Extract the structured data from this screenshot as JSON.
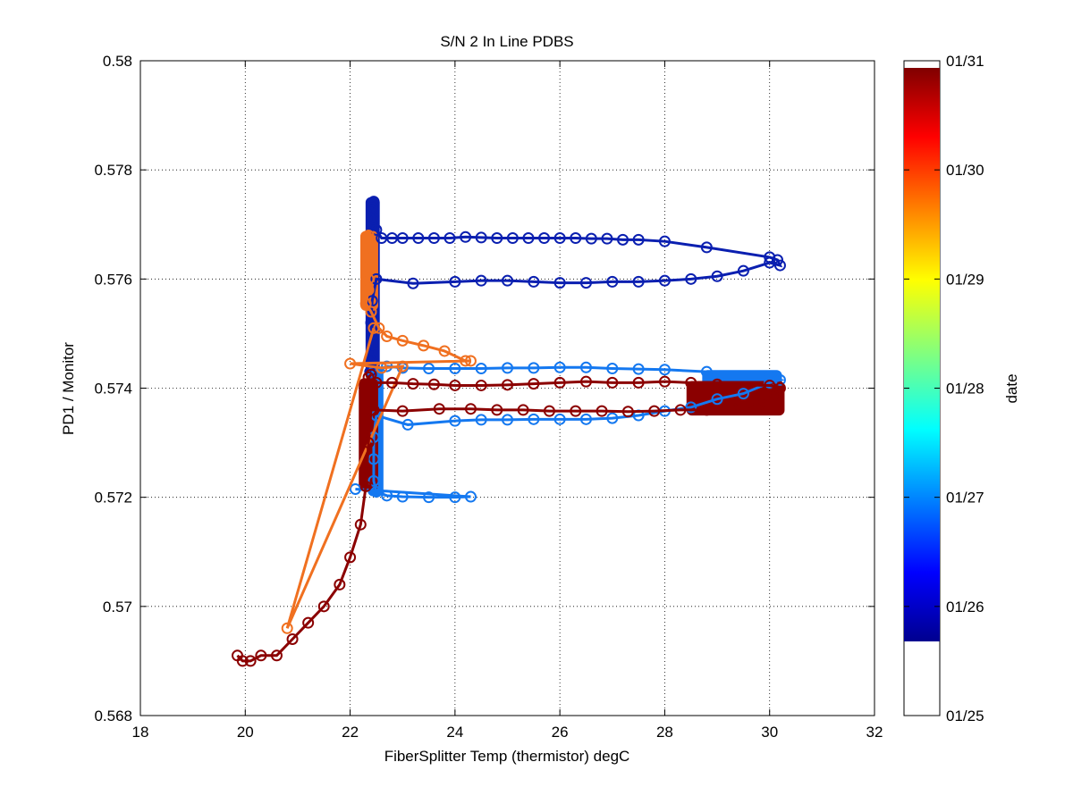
{
  "chart_data": {
    "type": "scatter",
    "title": "S/N 2 In Line PDBS",
    "xlabel": "FiberSplitter Temp (thermistor) degC",
    "ylabel": "PD1 / Monitor",
    "xlim": [
      18,
      32
    ],
    "ylim": [
      0.568,
      0.58
    ],
    "xticks": [
      18,
      20,
      22,
      24,
      26,
      28,
      30,
      32
    ],
    "xtick_labels": [
      "18",
      "20",
      "22",
      "24",
      "26",
      "28",
      "30",
      "32"
    ],
    "yticks": [
      0.568,
      0.57,
      0.572,
      0.574,
      0.576,
      0.578,
      0.58
    ],
    "ytick_labels": [
      "0.568",
      "0.57",
      "0.572",
      "0.574",
      "0.576",
      "0.578",
      "0.58"
    ],
    "grid": true,
    "colorbar": {
      "label": "date",
      "colormap": "jet",
      "range": [
        "01/25",
        "01/31"
      ],
      "ticks": [
        "01/25",
        "01/26",
        "01/27",
        "01/28",
        "01/29",
        "01/30",
        "01/31"
      ],
      "colored_span": [
        "01/25.7",
        "01/30.9"
      ]
    },
    "series": [
      {
        "date": "01/26",
        "color": "#0a1fb0",
        "points": [
          [
            22.45,
            0.57742
          ],
          [
            22.42,
            0.5773
          ],
          [
            22.45,
            0.5771
          ],
          [
            22.5,
            0.5769
          ],
          [
            22.6,
            0.57675
          ],
          [
            22.8,
            0.57675
          ],
          [
            23.0,
            0.57675
          ],
          [
            23.3,
            0.57675
          ],
          [
            23.6,
            0.57675
          ],
          [
            23.9,
            0.57675
          ],
          [
            24.2,
            0.57677
          ],
          [
            24.5,
            0.57676
          ],
          [
            24.8,
            0.57675
          ],
          [
            25.1,
            0.57675
          ],
          [
            25.4,
            0.57675
          ],
          [
            25.7,
            0.57675
          ],
          [
            26.0,
            0.57675
          ],
          [
            26.3,
            0.57675
          ],
          [
            26.6,
            0.57674
          ],
          [
            26.9,
            0.57674
          ],
          [
            27.2,
            0.57672
          ],
          [
            27.5,
            0.57672
          ],
          [
            28.0,
            0.57669
          ],
          [
            28.8,
            0.57658
          ],
          [
            30.0,
            0.5764
          ],
          [
            30.15,
            0.57635
          ],
          [
            30.2,
            0.57625
          ],
          [
            30.0,
            0.5763
          ],
          [
            29.5,
            0.57615
          ],
          [
            29.0,
            0.57605
          ],
          [
            28.5,
            0.576
          ],
          [
            28.0,
            0.57597
          ],
          [
            27.5,
            0.57595
          ],
          [
            27.0,
            0.57595
          ],
          [
            26.5,
            0.57593
          ],
          [
            26.0,
            0.57593
          ],
          [
            25.5,
            0.57595
          ],
          [
            25.0,
            0.57597
          ],
          [
            24.5,
            0.57597
          ],
          [
            24.0,
            0.57595
          ],
          [
            23.2,
            0.57592
          ],
          [
            22.5,
            0.576
          ],
          [
            22.42,
            0.5756
          ],
          [
            22.4,
            0.5752
          ],
          [
            22.42,
            0.5748
          ],
          [
            22.4,
            0.5745
          ],
          [
            22.38,
            0.5743
          ]
        ]
      },
      {
        "date": "01/27",
        "color": "#1478f0",
        "points": [
          [
            22.45,
            0.5743
          ],
          [
            22.7,
            0.5744
          ],
          [
            23.0,
            0.57437
          ],
          [
            23.5,
            0.57436
          ],
          [
            24.0,
            0.57436
          ],
          [
            24.5,
            0.57436
          ],
          [
            25.0,
            0.57437
          ],
          [
            25.5,
            0.57437
          ],
          [
            26.0,
            0.57438
          ],
          [
            26.5,
            0.57438
          ],
          [
            27.0,
            0.57436
          ],
          [
            27.5,
            0.57435
          ],
          [
            28.0,
            0.57434
          ],
          [
            28.8,
            0.5743
          ],
          [
            30.0,
            0.5742
          ],
          [
            30.2,
            0.57415
          ],
          [
            30.0,
            0.5741
          ],
          [
            29.5,
            0.5739
          ],
          [
            29.0,
            0.5738
          ],
          [
            28.5,
            0.57365
          ],
          [
            28.0,
            0.57358
          ],
          [
            27.5,
            0.5735
          ],
          [
            27.0,
            0.57345
          ],
          [
            26.5,
            0.57343
          ],
          [
            26.0,
            0.57343
          ],
          [
            25.5,
            0.57343
          ],
          [
            25.0,
            0.57342
          ],
          [
            24.5,
            0.57342
          ],
          [
            24.0,
            0.5734
          ],
          [
            23.1,
            0.57333
          ],
          [
            22.5,
            0.5735
          ],
          [
            22.45,
            0.5731
          ],
          [
            22.45,
            0.5727
          ],
          [
            22.45,
            0.5723
          ],
          [
            22.5,
            0.5721
          ],
          [
            22.7,
            0.57203
          ],
          [
            23.0,
            0.57201
          ],
          [
            23.5,
            0.572
          ],
          [
            24.0,
            0.572
          ],
          [
            24.3,
            0.57201
          ],
          [
            22.1,
            0.57215
          ]
        ]
      },
      {
        "date": "01/29.5",
        "color": "#f07020",
        "points": [
          [
            22.35,
            0.5768
          ],
          [
            22.4,
            0.5766
          ],
          [
            22.35,
            0.5764
          ],
          [
            22.38,
            0.5762
          ],
          [
            22.35,
            0.576
          ],
          [
            22.35,
            0.5758
          ],
          [
            22.3,
            0.57555
          ],
          [
            22.4,
            0.5754
          ],
          [
            22.55,
            0.5751
          ],
          [
            22.7,
            0.57495
          ],
          [
            23.0,
            0.57487
          ],
          [
            23.4,
            0.57478
          ],
          [
            23.8,
            0.57468
          ],
          [
            24.2,
            0.5745
          ],
          [
            24.3,
            0.5745
          ],
          [
            22.0,
            0.57445
          ],
          [
            22.6,
            0.57437
          ],
          [
            23.0,
            0.5744
          ],
          [
            20.8,
            0.5696
          ],
          [
            22.45,
            0.5751
          ]
        ]
      },
      {
        "date": "01/30.8",
        "color": "#8b0000",
        "points": [
          [
            19.85,
            0.5691
          ],
          [
            19.95,
            0.569
          ],
          [
            20.1,
            0.569
          ],
          [
            20.3,
            0.5691
          ],
          [
            20.6,
            0.5691
          ],
          [
            20.9,
            0.5694
          ],
          [
            21.2,
            0.5697
          ],
          [
            21.5,
            0.57
          ],
          [
            21.8,
            0.5704
          ],
          [
            22.0,
            0.5709
          ],
          [
            22.2,
            0.5715
          ],
          [
            22.3,
            0.5722
          ],
          [
            22.35,
            0.573
          ],
          [
            22.4,
            0.5736
          ],
          [
            22.5,
            0.5741
          ],
          [
            22.8,
            0.5741
          ],
          [
            23.2,
            0.57408
          ],
          [
            23.6,
            0.57407
          ],
          [
            24.0,
            0.57405
          ],
          [
            24.5,
            0.57405
          ],
          [
            25.0,
            0.57406
          ],
          [
            25.5,
            0.57408
          ],
          [
            26.0,
            0.5741
          ],
          [
            26.5,
            0.57412
          ],
          [
            27.0,
            0.5741
          ],
          [
            27.5,
            0.5741
          ],
          [
            28.0,
            0.57412
          ],
          [
            28.5,
            0.5741
          ],
          [
            29.0,
            0.57407
          ],
          [
            30.0,
            0.57405
          ],
          [
            30.2,
            0.574
          ],
          [
            30.1,
            0.5739
          ],
          [
            29.8,
            0.5737
          ],
          [
            29.3,
            0.57362
          ],
          [
            28.8,
            0.5736
          ],
          [
            28.3,
            0.5736
          ],
          [
            27.8,
            0.57358
          ],
          [
            27.3,
            0.57357
          ],
          [
            26.8,
            0.57358
          ],
          [
            26.3,
            0.57358
          ],
          [
            25.8,
            0.57358
          ],
          [
            25.3,
            0.5736
          ],
          [
            24.8,
            0.5736
          ],
          [
            24.3,
            0.57362
          ],
          [
            23.7,
            0.57362
          ],
          [
            23.0,
            0.57358
          ],
          [
            22.45,
            0.5736
          ],
          [
            22.35,
            0.5742
          ],
          [
            22.4,
            0.57425
          ]
        ]
      }
    ],
    "dense_bands": [
      {
        "date": "01/26",
        "color": "#0a1fb0",
        "x": [
          22.38,
          22.48
        ],
        "y": [
          0.5743,
          0.57742
        ]
      },
      {
        "date": "01/27",
        "color": "#1478f0",
        "x": [
          22.42,
          22.55
        ],
        "y": [
          0.5721,
          0.5743
        ]
      },
      {
        "date": "01/27",
        "color": "#1478f0",
        "x": [
          28.8,
          30.15
        ],
        "y": [
          0.5736,
          0.57425
        ]
      },
      {
        "date": "01/29.5",
        "color": "#f07020",
        "x": [
          22.28,
          22.45
        ],
        "y": [
          0.5755,
          0.5768
        ]
      },
      {
        "date": "01/30.8",
        "color": "#8b0000",
        "x": [
          22.25,
          22.45
        ],
        "y": [
          0.5722,
          0.5741
        ]
      },
      {
        "date": "01/30.8",
        "color": "#8b0000",
        "x": [
          28.5,
          30.2
        ],
        "y": [
          0.57358,
          0.57405
        ]
      }
    ]
  }
}
